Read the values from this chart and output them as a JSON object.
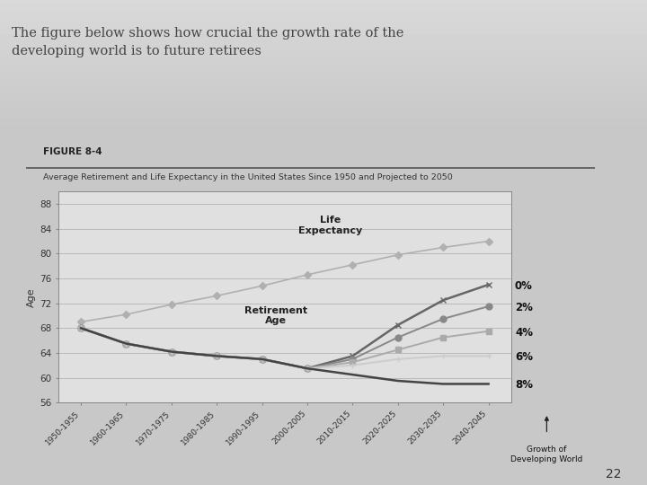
{
  "title_text": "The figure below shows how crucial the growth rate of the\ndeveloping world is to future retirees",
  "figure_label": "FIGURE 8-4",
  "chart_subtitle": "Average Retirement and Life Expectancy in the United States Since 1950 and Projected to 2050",
  "ylabel": "Age",
  "ylim": [
    56,
    90
  ],
  "yticks": [
    56,
    60,
    64,
    68,
    72,
    76,
    80,
    84,
    88
  ],
  "x_labels": [
    "1950-1955",
    "1960-1965",
    "1970-1975",
    "1980-1985",
    "1990-1995",
    "2000-2005",
    "2010-2015",
    "2020-2025",
    "2030-2035",
    "2040-2045"
  ],
  "right_axis_labels": [
    "0%",
    "2%",
    "4%",
    "6%",
    "8%"
  ],
  "right_axis_values": [
    75.0,
    71.5,
    67.5,
    63.5,
    59.0
  ],
  "life_expectancy": [
    69.0,
    70.2,
    71.8,
    73.2,
    74.8,
    76.6,
    78.2,
    79.8,
    81.0,
    82.0
  ],
  "life_expectancy_color": "#b0b0b0",
  "retirement_0pct": [
    68.0,
    65.5,
    64.2,
    63.5,
    63.0,
    61.5,
    63.5,
    68.5,
    72.5,
    75.0
  ],
  "retirement_0pct_color": "#666666",
  "retirement_0pct_marker": "x",
  "retirement_2pct": [
    68.0,
    65.5,
    64.2,
    63.5,
    63.0,
    61.5,
    63.0,
    66.5,
    69.5,
    71.5
  ],
  "retirement_2pct_color": "#888888",
  "retirement_2pct_marker": "o",
  "retirement_4pct": [
    68.0,
    65.5,
    64.2,
    63.5,
    63.0,
    61.5,
    62.5,
    64.5,
    66.5,
    67.5
  ],
  "retirement_4pct_color": "#aaaaaa",
  "retirement_4pct_marker": "s",
  "retirement_6pct": [
    68.0,
    65.5,
    64.2,
    63.5,
    63.0,
    61.5,
    62.0,
    63.0,
    63.5,
    63.5
  ],
  "retirement_6pct_color": "#cccccc",
  "retirement_6pct_marker": "P",
  "retirement_8pct": [
    68.0,
    65.5,
    64.2,
    63.5,
    63.0,
    61.5,
    60.5,
    59.5,
    59.0,
    59.0
  ],
  "retirement_8pct_color": "#444444",
  "retirement_8pct_marker": "none",
  "bg_top": "#c8c8c8",
  "bg_bottom": "#d5d5d5",
  "panel_bg": "#e0e0e0",
  "page_number": "22"
}
